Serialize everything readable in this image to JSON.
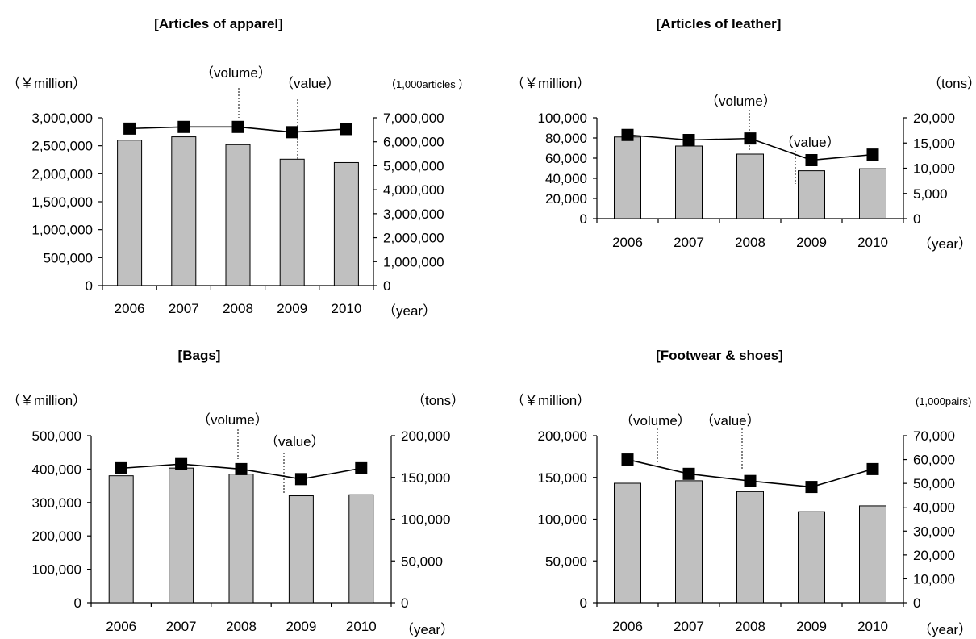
{
  "chart_data": [
    {
      "type": "bar",
      "title": "[Articles of apparel]",
      "left_unit": "（￥million）",
      "right_unit": "（1,000articles ）",
      "x_unit": "（year）",
      "categories": [
        "2006",
        "2007",
        "2008",
        "2009",
        "2010"
      ],
      "series": [
        {
          "name": "value",
          "axis": "left",
          "kind": "bar",
          "values": [
            2600000,
            2660000,
            2520000,
            2260000,
            2200000
          ]
        },
        {
          "name": "volume",
          "axis": "right",
          "kind": "line",
          "values": [
            6550000,
            6620000,
            6620000,
            6400000,
            6530000
          ]
        }
      ],
      "ylim_left": [
        0,
        3000000
      ],
      "yticks_left": [
        "0",
        "500,000",
        "1,000,000",
        "1,500,000",
        "2,000,000",
        "2,500,000",
        "3,000,000"
      ],
      "ylim_right": [
        0,
        7000000
      ],
      "yticks_right": [
        "0",
        "1,000,000",
        "2,000,000",
        "3,000,000",
        "4,000,000",
        "5,000,000",
        "6,000,000",
        "7,000,000"
      ],
      "annotations": [
        "（volume）",
        "（value）"
      ]
    },
    {
      "type": "bar",
      "title": "[Articles of leather]",
      "left_unit": "（￥million）",
      "right_unit": "（tons）",
      "x_unit": "（year）",
      "categories": [
        "2006",
        "2007",
        "2008",
        "2009",
        "2010"
      ],
      "series": [
        {
          "name": "value",
          "axis": "left",
          "kind": "bar",
          "values": [
            81000,
            72000,
            64000,
            47500,
            49500
          ]
        },
        {
          "name": "volume",
          "axis": "right",
          "kind": "line",
          "values": [
            16600,
            15600,
            15900,
            11600,
            12700
          ]
        }
      ],
      "ylim_left": [
        0,
        100000
      ],
      "yticks_left": [
        "0",
        "20,000",
        "40,000",
        "60,000",
        "80,000",
        "100,000"
      ],
      "ylim_right": [
        0,
        20000
      ],
      "yticks_right": [
        "0",
        "5,000",
        "10,000",
        "15,000",
        "20,000"
      ],
      "annotations": [
        "（volume）",
        "（value）"
      ]
    },
    {
      "type": "bar",
      "title": "[Bags]",
      "left_unit": "（￥million）",
      "right_unit": "（tons）",
      "x_unit": "（year）",
      "categories": [
        "2006",
        "2007",
        "2008",
        "2009",
        "2010"
      ],
      "series": [
        {
          "name": "value",
          "axis": "left",
          "kind": "bar",
          "values": [
            380000,
            403000,
            385000,
            320000,
            323000
          ]
        },
        {
          "name": "volume",
          "axis": "right",
          "kind": "line",
          "values": [
            161000,
            166000,
            160000,
            148000,
            161000
          ]
        }
      ],
      "ylim_left": [
        0,
        500000
      ],
      "yticks_left": [
        "0",
        "100,000",
        "200,000",
        "300,000",
        "400,000",
        "500,000"
      ],
      "ylim_right": [
        0,
        200000
      ],
      "yticks_right": [
        "0",
        "50,000",
        "100,000",
        "150,000",
        "200,000"
      ],
      "annotations": [
        "（volume）",
        "（value）"
      ]
    },
    {
      "type": "bar",
      "title": "[Footwear & shoes]",
      "left_unit": "（￥million）",
      "right_unit": "(1,000pairs)",
      "x_unit": "（year）",
      "categories": [
        "2006",
        "2007",
        "2008",
        "2009",
        "2010"
      ],
      "series": [
        {
          "name": "value",
          "axis": "left",
          "kind": "bar",
          "values": [
            143000,
            146000,
            133000,
            109000,
            116000
          ]
        },
        {
          "name": "volume",
          "axis": "right",
          "kind": "line",
          "values": [
            60000,
            54000,
            51000,
            48500,
            56000
          ]
        }
      ],
      "ylim_left": [
        0,
        200000
      ],
      "yticks_left": [
        "0",
        "50,000",
        "100,000",
        "150,000",
        "200,000"
      ],
      "ylim_right": [
        0,
        70000
      ],
      "yticks_right": [
        "0",
        "10,000",
        "20,000",
        "30,000",
        "40,000",
        "50,000",
        "60,000",
        "70,000"
      ],
      "annotations": [
        "（volume）",
        "（value）"
      ]
    }
  ]
}
